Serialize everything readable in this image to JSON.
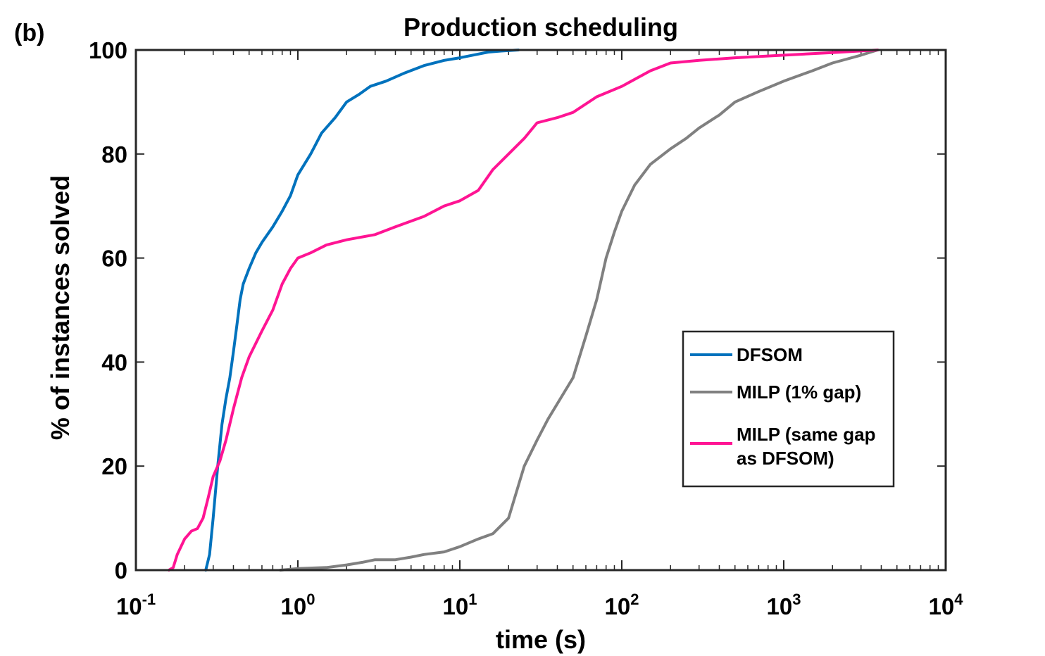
{
  "panel_label": "(b)",
  "chart_data": {
    "type": "line",
    "title": "Production scheduling",
    "xlabel": "time (s)",
    "ylabel": "% of instances solved",
    "xscale": "log",
    "xlim_exp": [
      -1,
      4
    ],
    "ylim": [
      0,
      100
    ],
    "x_ticks": [
      {
        "base": "10",
        "exp": "-1",
        "value": 0.1
      },
      {
        "base": "10",
        "exp": "0",
        "value": 1
      },
      {
        "base": "10",
        "exp": "1",
        "value": 10
      },
      {
        "base": "10",
        "exp": "2",
        "value": 100
      },
      {
        "base": "10",
        "exp": "3",
        "value": 1000
      },
      {
        "base": "10",
        "exp": "4",
        "value": 10000
      }
    ],
    "y_ticks": [
      "0",
      "20",
      "40",
      "60",
      "80",
      "100"
    ],
    "legend_position": "right, lower-middle",
    "series": [
      {
        "name": "DFSOM",
        "color": "#0072BD",
        "x": [
          0.27,
          0.285,
          0.3,
          0.32,
          0.34,
          0.36,
          0.38,
          0.4,
          0.42,
          0.44,
          0.46,
          0.5,
          0.55,
          0.6,
          0.7,
          0.8,
          0.9,
          1.0,
          1.2,
          1.4,
          1.7,
          2.0,
          2.4,
          2.8,
          3.5,
          4.5,
          6.0,
          8.0,
          10.0,
          12.0,
          15.0,
          18.0,
          23.0
        ],
        "y": [
          0,
          3,
          10,
          20,
          28,
          33,
          37,
          42,
          47,
          52,
          55,
          58,
          61,
          63,
          66,
          69,
          72,
          76,
          80,
          84,
          87,
          90,
          91.5,
          93,
          94,
          95.5,
          97,
          98,
          98.5,
          99,
          99.6,
          99.8,
          100
        ]
      },
      {
        "name": "MILP (1% gap)",
        "color": "#808080",
        "x": [
          0.78,
          1.0,
          1.5,
          2.0,
          2.5,
          3.0,
          4.0,
          5.0,
          6.0,
          8.0,
          10.0,
          13.0,
          16.0,
          20.0,
          25.0,
          30.0,
          35.0,
          40.0,
          50.0,
          60.0,
          70.0,
          80.0,
          90.0,
          100.0,
          120.0,
          150.0,
          200.0,
          250.0,
          300.0,
          400.0,
          500.0,
          700.0,
          1000.0,
          1500.0,
          2000.0,
          3000.0,
          3800.0
        ],
        "y": [
          0,
          0.3,
          0.5,
          1,
          1.5,
          2,
          2,
          2.5,
          3,
          3.5,
          4.5,
          6,
          7,
          10,
          20,
          25,
          29,
          32,
          37,
          45,
          52,
          60,
          65,
          69,
          74,
          78,
          81,
          83,
          85,
          87.5,
          90,
          92,
          94,
          96,
          97.5,
          99,
          100
        ]
      },
      {
        "name": "MILP (same gap as DFSOM)",
        "color": "#FF1493",
        "x": [
          0.16,
          0.17,
          0.18,
          0.2,
          0.22,
          0.24,
          0.26,
          0.28,
          0.3,
          0.33,
          0.36,
          0.4,
          0.45,
          0.5,
          0.6,
          0.7,
          0.8,
          0.9,
          1.0,
          1.2,
          1.5,
          2.0,
          3.0,
          4.0,
          6.0,
          8.0,
          10.0,
          13.0,
          16.0,
          20.0,
          25.0,
          30.0,
          40.0,
          50.0,
          70.0,
          100.0,
          150.0,
          200.0,
          300.0,
          500.0,
          1000.0,
          2000.0,
          3800.0
        ],
        "y": [
          0,
          0.5,
          3,
          6,
          7.5,
          8,
          10,
          14,
          18,
          21,
          25,
          31,
          37,
          41,
          46,
          50,
          55,
          58,
          60,
          61,
          62.5,
          63.5,
          64.5,
          66,
          68,
          70,
          71,
          73,
          77,
          80,
          83,
          86,
          87,
          88,
          91,
          93,
          96,
          97.5,
          98,
          98.5,
          99,
          99.5,
          100
        ]
      }
    ]
  },
  "legend": {
    "items": [
      {
        "label": "DFSOM"
      },
      {
        "label": "MILP (1% gap)"
      },
      {
        "label_line1": "MILP (same gap",
        "label_line2": "as DFSOM)"
      }
    ]
  }
}
